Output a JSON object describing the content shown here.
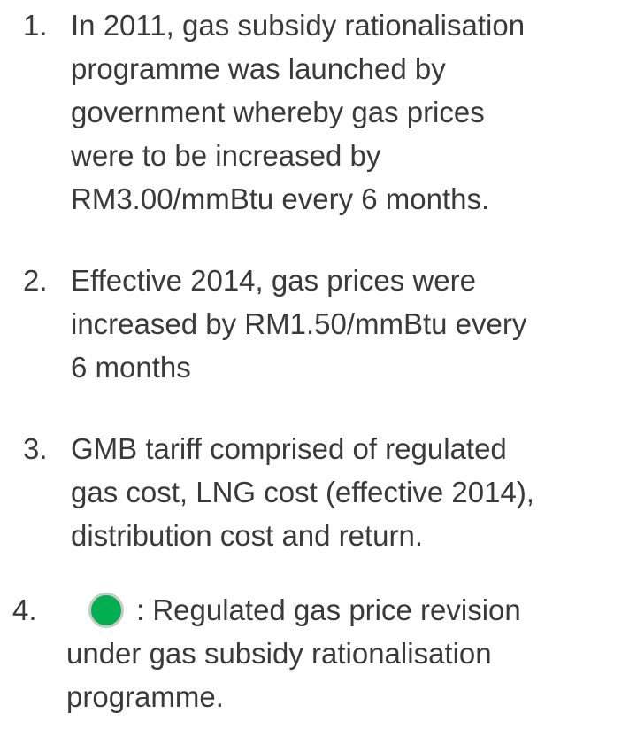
{
  "items": [
    {
      "number": "1.",
      "lines": [
        "In 2011, gas subsidy rationalisation",
        "programme was launched by",
        "government whereby gas prices",
        "were to be increased by",
        "RM3.00/mmBtu every 6 months."
      ]
    },
    {
      "number": "2.",
      "lines": [
        "Effective 2014, gas prices were",
        "increased by RM1.50/mmBtu every",
        "6 months"
      ]
    },
    {
      "number": "3.",
      "lines": [
        "GMB tariff comprised of regulated",
        "gas cost, LNG cost (effective 2014),",
        "distribution cost and return."
      ]
    },
    {
      "number": "4.",
      "lines": [
        ": Regulated gas price revision",
        "under gas subsidy rationalisation",
        "programme."
      ]
    }
  ]
}
